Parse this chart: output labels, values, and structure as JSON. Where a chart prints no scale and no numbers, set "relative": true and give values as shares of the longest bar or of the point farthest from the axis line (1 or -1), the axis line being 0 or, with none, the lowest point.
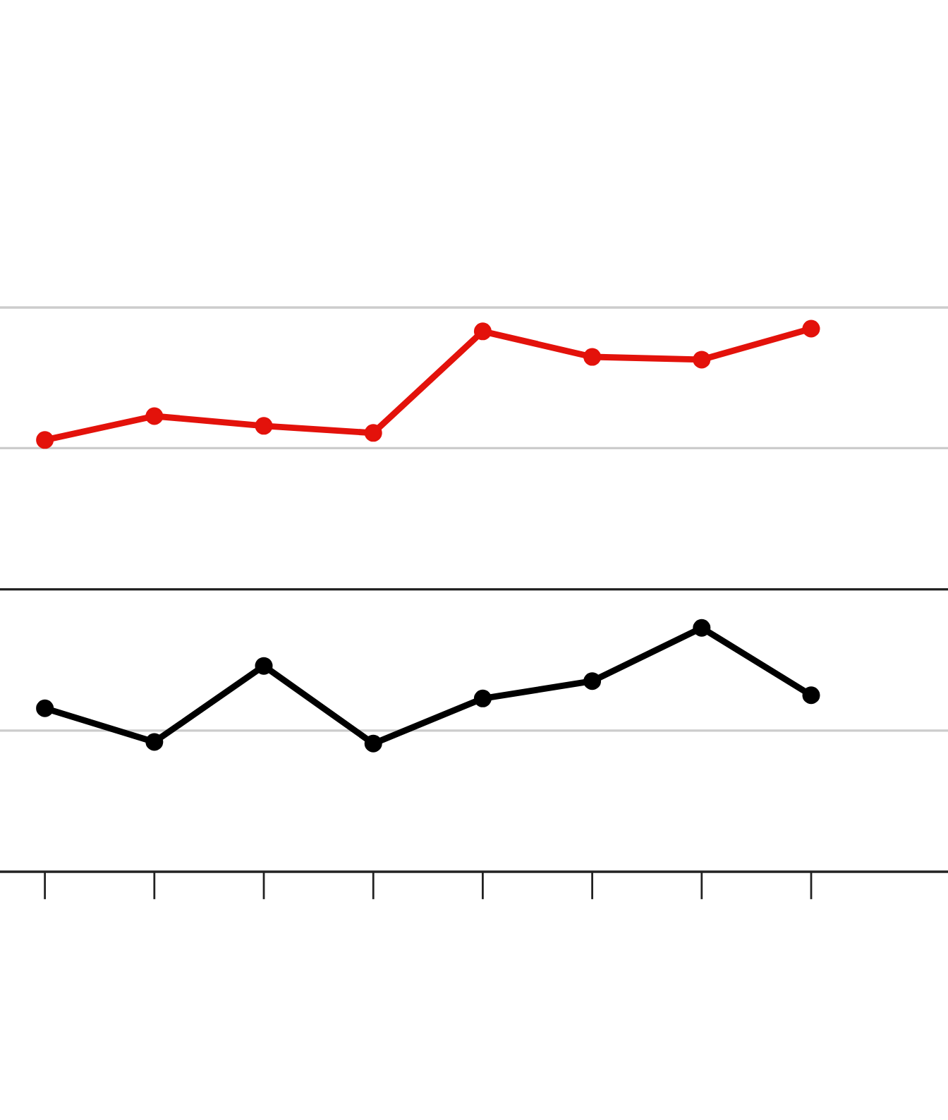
{
  "chart_data": {
    "type": "line",
    "relative": true,
    "categories": [
      null,
      null,
      null,
      null,
      null,
      null,
      null,
      null
    ],
    "series": [
      {
        "color": "#e3120b",
        "values": [
          0.795,
          0.839,
          0.821,
          0.808,
          0.995,
          0.948,
          0.943,
          1.0
        ]
      },
      {
        "color": "#000000",
        "values": [
          0.301,
          0.239,
          0.379,
          0.236,
          0.319,
          0.351,
          0.449,
          0.325
        ]
      }
    ],
    "ref_lines": [
      {
        "axis": "y",
        "value": 0.26,
        "color": "#cccccc"
      },
      {
        "axis": "y",
        "value": 0.52,
        "color": "#222222"
      },
      {
        "axis": "y",
        "value": 0.78,
        "color": "#cccccc"
      },
      {
        "axis": "y",
        "value": 1.039,
        "color": "#cccccc"
      }
    ],
    "marker": "circle",
    "line_style": "solid"
  }
}
